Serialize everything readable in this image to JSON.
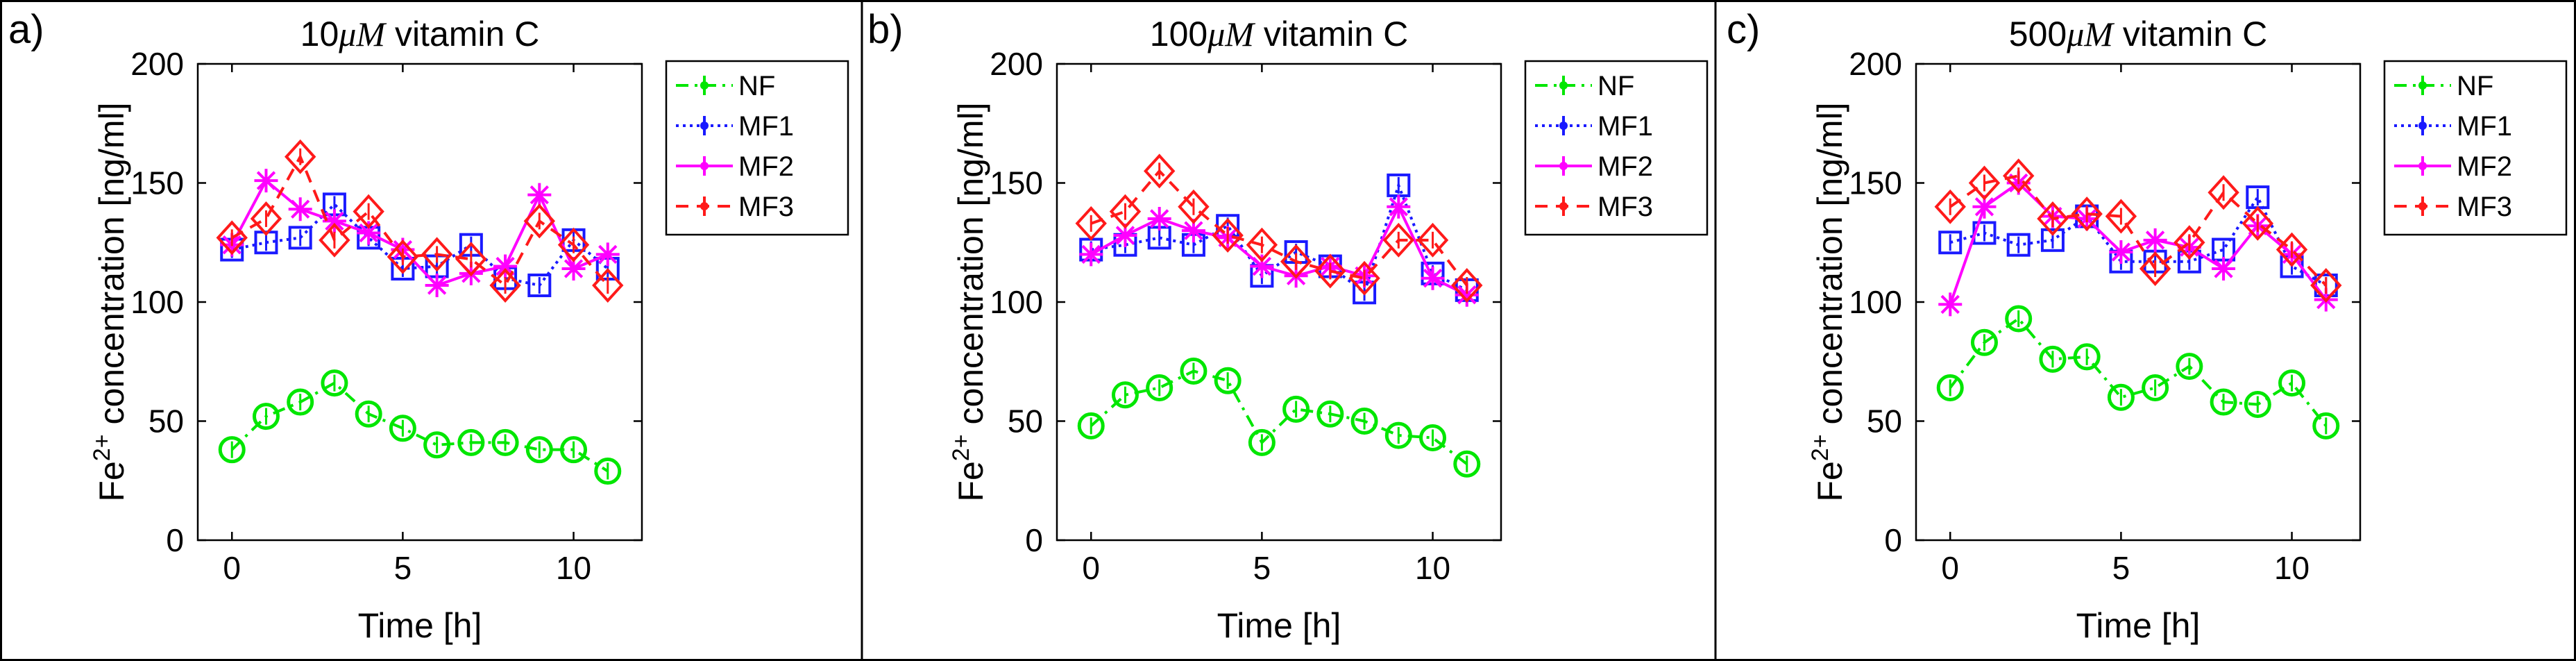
{
  "chart_data": [
    {
      "type": "line",
      "panel_label": "a)",
      "title_value": "10",
      "title_unit": "μM",
      "title_text": "vitamin C",
      "ylabel_base": "Fe",
      "ylabel_sup": "2+",
      "ylabel_rest": "concentration [ng/ml]",
      "xlabel": "Time [h]",
      "xlim": [
        -1,
        12
      ],
      "ylim": [
        0,
        200
      ],
      "xticks": [
        0,
        5,
        10
      ],
      "yticks": [
        0,
        50,
        100,
        150,
        200
      ],
      "legend_position": "top-right outside",
      "series": [
        {
          "name": "NF",
          "x": [
            0,
            1,
            2,
            3,
            4,
            5,
            6,
            7,
            8,
            9,
            10,
            11
          ],
          "values": [
            38,
            52,
            58,
            66,
            53,
            47,
            40,
            41,
            41,
            38,
            38,
            29
          ]
        },
        {
          "name": "MF1",
          "x": [
            0,
            1,
            2,
            3,
            4,
            5,
            6,
            7,
            8,
            9,
            10,
            11
          ],
          "values": [
            122,
            125,
            127,
            141,
            127,
            114,
            115,
            124,
            110,
            107,
            126,
            114
          ]
        },
        {
          "name": "MF2",
          "x": [
            0,
            1,
            2,
            3,
            4,
            5,
            6,
            7,
            8,
            9,
            10,
            11
          ],
          "values": [
            124,
            151,
            139,
            134,
            129,
            122,
            107,
            112,
            115,
            145,
            114,
            120
          ]
        },
        {
          "name": "MF3",
          "x": [
            0,
            1,
            2,
            3,
            4,
            5,
            6,
            7,
            8,
            9,
            10,
            11
          ],
          "values": [
            127,
            135,
            161,
            126,
            138,
            119,
            120,
            118,
            107,
            134,
            124,
            107
          ]
        }
      ]
    },
    {
      "type": "line",
      "panel_label": "b)",
      "title_value": "100",
      "title_unit": "μM",
      "title_text": "vitamin C",
      "ylabel_base": "Fe",
      "ylabel_sup": "2+",
      "ylabel_rest": "concentration [ng/ml]",
      "xlabel": "Time [h]",
      "xlim": [
        -1,
        12
      ],
      "ylim": [
        0,
        200
      ],
      "xticks": [
        0,
        5,
        10
      ],
      "yticks": [
        0,
        50,
        100,
        150,
        200
      ],
      "legend_position": "top-right outside",
      "series": [
        {
          "name": "NF",
          "x": [
            0,
            1,
            2,
            3,
            4,
            5,
            6,
            7,
            8,
            9,
            10,
            11
          ],
          "values": [
            48,
            61,
            64,
            71,
            67,
            41,
            55,
            53,
            50,
            44,
            43,
            32
          ]
        },
        {
          "name": "MF1",
          "x": [
            0,
            1,
            2,
            3,
            4,
            5,
            6,
            7,
            8,
            9,
            10,
            11
          ],
          "values": [
            122,
            124,
            127,
            124,
            132,
            111,
            121,
            115,
            104,
            149,
            112,
            105
          ]
        },
        {
          "name": "MF2",
          "x": [
            0,
            1,
            2,
            3,
            4,
            5,
            6,
            7,
            8,
            9,
            10,
            11
          ],
          "values": [
            120,
            128,
            135,
            130,
            127,
            115,
            111,
            115,
            111,
            140,
            110,
            103
          ]
        },
        {
          "name": "MF3",
          "x": [
            0,
            1,
            2,
            3,
            4,
            5,
            6,
            7,
            8,
            9,
            10,
            11
          ],
          "values": [
            133,
            138,
            155,
            140,
            128,
            124,
            117,
            113,
            110,
            126,
            126,
            107
          ]
        }
      ]
    },
    {
      "type": "line",
      "panel_label": "c)",
      "title_value": "500",
      "title_unit": "μM",
      "title_text": "vitamin C",
      "ylabel_base": "Fe",
      "ylabel_sup": "2+",
      "ylabel_rest": "concentration [ng/ml]",
      "xlabel": "Time [h]",
      "xlim": [
        -1,
        12
      ],
      "ylim": [
        0,
        200
      ],
      "xticks": [
        0,
        5,
        10
      ],
      "yticks": [
        0,
        50,
        100,
        150,
        200
      ],
      "legend_position": "top-right outside",
      "series": [
        {
          "name": "NF",
          "x": [
            0,
            1,
            2,
            3,
            4,
            5,
            6,
            7,
            8,
            9,
            10,
            11
          ],
          "values": [
            64,
            83,
            93,
            76,
            77,
            60,
            64,
            73,
            58,
            57,
            66,
            48
          ]
        },
        {
          "name": "MF1",
          "x": [
            0,
            1,
            2,
            3,
            4,
            5,
            6,
            7,
            8,
            9,
            10,
            11
          ],
          "values": [
            125,
            129,
            124,
            126,
            136,
            117,
            117,
            117,
            122,
            144,
            115,
            107
          ]
        },
        {
          "name": "MF2",
          "x": [
            0,
            1,
            2,
            3,
            4,
            5,
            6,
            7,
            8,
            9,
            10,
            11
          ],
          "values": [
            99,
            140,
            150,
            136,
            135,
            121,
            126,
            123,
            114,
            132,
            120,
            101
          ]
        },
        {
          "name": "MF3",
          "x": [
            0,
            1,
            2,
            3,
            4,
            5,
            6,
            7,
            8,
            9,
            10,
            11
          ],
          "values": [
            140,
            150,
            153,
            135,
            137,
            136,
            114,
            125,
            146,
            133,
            122,
            107
          ]
        }
      ]
    }
  ],
  "styles": {
    "NF": {
      "color": "#00e600",
      "dash": "18 9 4 9",
      "marker": "circle"
    },
    "MF1": {
      "color": "#1a1aff",
      "dash": "4 6",
      "marker": "square"
    },
    "MF2": {
      "color": "#ff00ff",
      "dash": "",
      "marker": "asterisk"
    },
    "MF3": {
      "color": "#ff1a1a",
      "dash": "18 12",
      "marker": "diamond"
    }
  }
}
